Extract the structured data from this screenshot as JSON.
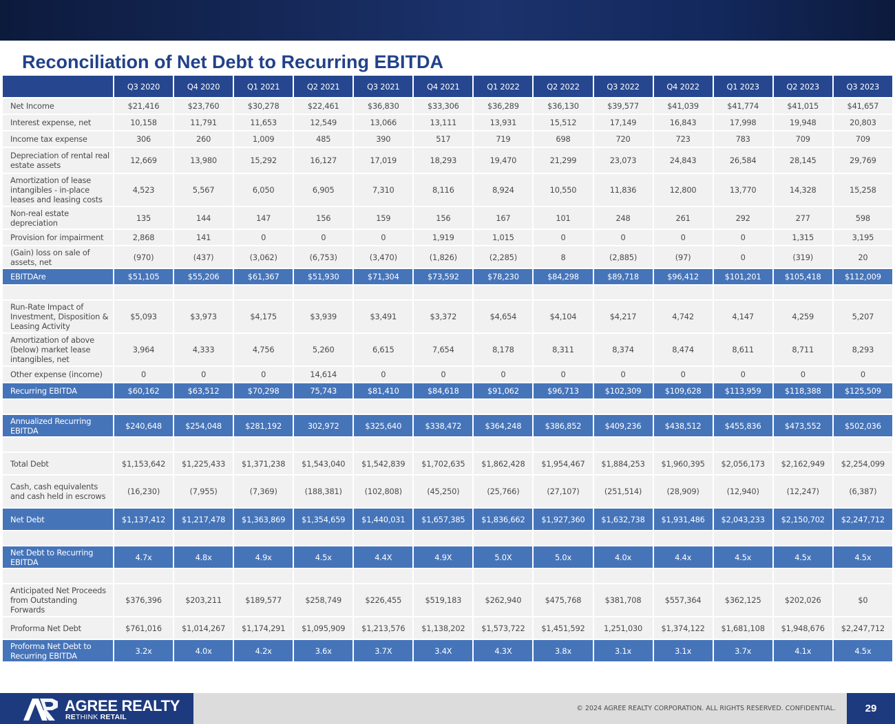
{
  "title": "Reconciliation of Net Debt to Recurring EBITDA",
  "columns": [
    "Q3 2020",
    "Q4 2020",
    "Q1 2021",
    "Q2 2021",
    "Q3 2021",
    "Q4 2021",
    "Q1 2022",
    "Q2 2022",
    "Q3 2022",
    "Q4 2022",
    "Q1 2023",
    "Q2 2023",
    "Q3 2023"
  ],
  "rows": [
    {
      "label": "Net Income",
      "style": "normal",
      "h": "h22",
      "values": [
        "$21,416",
        "$23,760",
        "$30,278",
        "$22,461",
        "$36,830",
        "$33,306",
        "$36,289",
        "$36,130",
        "$39,577",
        "$41,039",
        "$41,774",
        "$41,015",
        "$41,657"
      ]
    },
    {
      "label": "Interest expense, net",
      "style": "normal",
      "h": "h22",
      "values": [
        "10,158",
        "11,791",
        "11,653",
        "12,549",
        "13,066",
        "13,111",
        "13,931",
        "15,512",
        "17,149",
        "16,843",
        "17,998",
        "19,948",
        "20,803"
      ]
    },
    {
      "label": "Income tax expense",
      "style": "normal",
      "h": "h22",
      "values": [
        "306",
        "260",
        "1,009",
        "485",
        "390",
        "517",
        "719",
        "698",
        "720",
        "723",
        "783",
        "709",
        "709"
      ]
    },
    {
      "label": "Depreciation of rental real estate assets",
      "style": "normal",
      "h": "h36",
      "values": [
        "12,669",
        "13,980",
        "15,292",
        "16,127",
        "17,019",
        "18,293",
        "19,470",
        "21,299",
        "23,073",
        "24,843",
        "26,584",
        "28,145",
        "29,769"
      ]
    },
    {
      "label": "Amortization of lease intangibles - in-place leases and leasing costs",
      "style": "normal",
      "h": "h46",
      "values": [
        "4,523",
        "5,567",
        "6,050",
        "6,905",
        "7,310",
        "8,116",
        "8,924",
        "10,550",
        "11,836",
        "12,800",
        "13,770",
        "14,328",
        "15,258"
      ]
    },
    {
      "label": "Non-real estate depreciation",
      "style": "normal",
      "h": "h31",
      "values": [
        "135",
        "144",
        "147",
        "156",
        "159",
        "156",
        "167",
        "101",
        "248",
        "261",
        "292",
        "277",
        "598"
      ]
    },
    {
      "label": "Provision for impairment",
      "style": "normal",
      "h": "h22",
      "values": [
        "2,868",
        "141",
        "0",
        "0",
        "0",
        "1,919",
        "1,015",
        "0",
        "0",
        "0",
        "0",
        "1,315",
        "3,195"
      ]
    },
    {
      "label": "(Gain) loss on sale of assets, net",
      "style": "normal",
      "h": "h31",
      "values": [
        "(970)",
        "(437)",
        "(3,062)",
        "(6,753)",
        "(3,470)",
        "(1,826)",
        "(2,285)",
        "8",
        "(2,885)",
        "(97)",
        "0",
        "(319)",
        "20"
      ]
    },
    {
      "label": "EBITDAre",
      "style": "hl",
      "h": "",
      "values": [
        "$51,105",
        "$55,206",
        "$61,367",
        "$51,930",
        "$71,304",
        "$73,592",
        "$78,230",
        "$84,298",
        "$89,718",
        "$96,412",
        "$101,201",
        "$105,418",
        "$112,009"
      ]
    },
    {
      "label": "",
      "style": "sp",
      "h": "",
      "values": []
    },
    {
      "label": "Run-Rate Impact of Investment, Disposition & Leasing Activity",
      "style": "normal",
      "h": "h46",
      "values": [
        "$5,093",
        "$3,973",
        "$4,175",
        "$3,939",
        "$3,491",
        "$3,372",
        "$4,654",
        "$4,104",
        "$4,217",
        "4,742",
        "4,147",
        "4,259",
        "5,207"
      ]
    },
    {
      "label": "Amortization of above (below) market lease intangibles, net",
      "style": "normal",
      "h": "h46",
      "values": [
        "3,964",
        "4,333",
        "4,756",
        "5,260",
        "6,615",
        "7,654",
        "8,178",
        "8,311",
        "8,374",
        "8,474",
        "8,611",
        "8,711",
        "8,293"
      ]
    },
    {
      "label": "Other expense (income)",
      "style": "normal",
      "h": "h22",
      "values": [
        "0",
        "0",
        "0",
        "14,614",
        "0",
        "0",
        "0",
        "0",
        "0",
        "0",
        "0",
        "0",
        "0"
      ]
    },
    {
      "label": "Recurring EBITDA",
      "style": "hl",
      "h": "",
      "values": [
        "$60,162",
        "$63,512",
        "$70,298",
        "75,743",
        "$81,410",
        "$84,618",
        "$91,062",
        "$96,713",
        "$102,309",
        "$109,628",
        "$113,959",
        "$118,388",
        "$125,509"
      ]
    },
    {
      "label": "",
      "style": "sp",
      "h": "",
      "values": []
    },
    {
      "label": "Annualized Recurring EBITDA",
      "style": "hl2",
      "h": "",
      "values": [
        "$240,648",
        "$254,048",
        "$281,192",
        "302,972",
        "$325,640",
        "$338,472",
        "$364,248",
        "$386,852",
        "$409,236",
        "$438,512",
        "$455,836",
        "$473,552",
        "$502,036"
      ]
    },
    {
      "label": "",
      "style": "sp",
      "h": "",
      "values": []
    },
    {
      "label": "Total Debt",
      "style": "normal",
      "h": "h31",
      "values": [
        "$1,153,642",
        "$1,225,433",
        "$1,371,238",
        "$1,543,040",
        "$1,542,839",
        "$1,702,635",
        "$1,862,428",
        "$1,954,467",
        "$1,884,253",
        "$1,960,395",
        "$2,056,173",
        "$2,162,949",
        "$2,254,099"
      ]
    },
    {
      "label": "Cash, cash equivalents and  cash held in escrows",
      "style": "normal",
      "h": "h46",
      "values": [
        "(16,230)",
        "(7,955)",
        "(7,369)",
        "(188,381)",
        "(102,808)",
        "(45,250)",
        "(25,766)",
        "(27,107)",
        "(251,514)",
        "(28,909)",
        "(12,940)",
        "(12,247)",
        "(6,387)"
      ]
    },
    {
      "label": "Net Debt",
      "style": "hl2",
      "h": "",
      "values": [
        "$1,137,412",
        "$1,217,478",
        "$1,363,869",
        "$1,354,659",
        "$1,440,031",
        "$1,657,385",
        "$1,836,662",
        "$1,927,360",
        "$1,632,738",
        "$1,931,486",
        "$2,043,233",
        "$2,150,702",
        "$2,247,712"
      ]
    },
    {
      "label": "",
      "style": "sp",
      "h": "",
      "values": []
    },
    {
      "label": "Net Debt to Recurring EBITDA",
      "style": "hl2",
      "h": "",
      "values": [
        "4.7x",
        "4.8x",
        "4.9x",
        "4.5x",
        "4.4X",
        "4.9X",
        "5.0X",
        "5.0x",
        "4.0x",
        "4.4x",
        "4.5x",
        "4.5x",
        "4.5x"
      ]
    },
    {
      "label": "",
      "style": "sp",
      "h": "",
      "values": []
    },
    {
      "label": "Anticipated Net Proceeds from Outstanding Forwards",
      "style": "normal",
      "h": "h46",
      "values": [
        "$376,396",
        "$203,211",
        "$189,577",
        "$258,749",
        "$226,455",
        "$519,183",
        "$262,940",
        "$475,768",
        "$381,708",
        "$557,364",
        "$362,125",
        "$202,026",
        "$0"
      ]
    },
    {
      "label": "Proforma Net Debt",
      "style": "normal",
      "h": "h31",
      "values": [
        "$761,016",
        "$1,014,267",
        "$1,174,291",
        "$1,095,909",
        "$1,213,576",
        "$1,138,202",
        "$1,573,722",
        "$1,451,592",
        "1,251,030",
        "$1,374,122",
        "$1,681,108",
        "$1,948,676",
        "$2,247,712"
      ]
    },
    {
      "label": "Proforma Net Debt to Recurring EBITDA",
      "style": "hl2",
      "h": "",
      "values": [
        "3.2x",
        "4.0x",
        "4.2x",
        "3.6x",
        "3.7X",
        "3.4X",
        "4.3X",
        "3.8x",
        "3.1x",
        "3.1x",
        "3.7x",
        "4.1x",
        "4.5x"
      ]
    }
  ],
  "footer": {
    "brand": "AGREE REALTY",
    "tagline_light": "RE",
    "tagline_rest": "THINK",
    "tagline_bold": "RETAIL",
    "copyright": "© 2024 AGREE REALTY CORPORATION. ALL RIGHTS RESERVED. CONFIDENTIAL.",
    "page_number": "29"
  },
  "colors": {
    "title": "#21418a",
    "header": "#26478f",
    "highlight": "#4574b9",
    "cell": "#f1f1f1"
  }
}
